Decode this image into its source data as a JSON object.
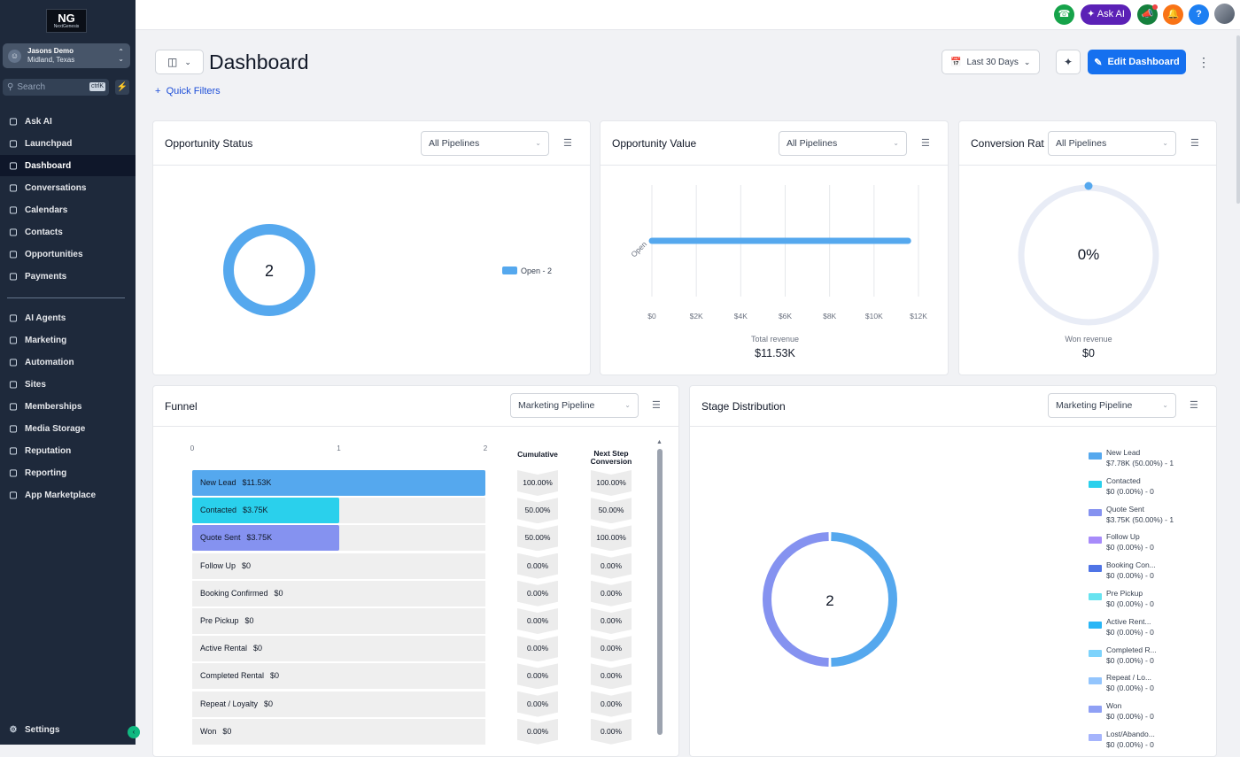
{
  "app": {
    "logo_text": "NextGenesis"
  },
  "account": {
    "name": "Jasons Demo",
    "location": "Midland, Texas"
  },
  "search": {
    "placeholder": "Search",
    "shortcut": "ctrlK"
  },
  "sidebar": {
    "items": [
      {
        "label": "Ask AI",
        "icon": "sparkle-icon"
      },
      {
        "label": "Launchpad",
        "icon": "rocket-icon"
      },
      {
        "label": "Dashboard",
        "icon": "grid-icon"
      },
      {
        "label": "Conversations",
        "icon": "chat-icon"
      },
      {
        "label": "Calendars",
        "icon": "calendar-icon"
      },
      {
        "label": "Contacts",
        "icon": "contacts-icon"
      },
      {
        "label": "Opportunities",
        "icon": "opportunities-icon"
      },
      {
        "label": "Payments",
        "icon": "payments-icon"
      }
    ],
    "items2": [
      {
        "label": "AI Agents",
        "icon": "ai-agents-icon"
      },
      {
        "label": "Marketing",
        "icon": "send-icon"
      },
      {
        "label": "Automation",
        "icon": "automation-icon"
      },
      {
        "label": "Sites",
        "icon": "sites-icon"
      },
      {
        "label": "Memberships",
        "icon": "memberships-icon"
      },
      {
        "label": "Media Storage",
        "icon": "media-icon"
      },
      {
        "label": "Reputation",
        "icon": "star-icon"
      },
      {
        "label": "Reporting",
        "icon": "trend-icon"
      },
      {
        "label": "App Marketplace",
        "icon": "apps-icon"
      }
    ],
    "settings": "Settings"
  },
  "topbar": {
    "ask_ai": "Ask AI"
  },
  "page": {
    "title": "Dashboard",
    "quick_filters": "Quick Filters",
    "date_range": "Last 30 Days",
    "edit_dashboard": "Edit Dashboard"
  },
  "cards": {
    "opportunity_status": {
      "title": "Opportunity Status",
      "filter": "All Pipelines",
      "center_value": "2",
      "legend": "Open - 2"
    },
    "opportunity_value": {
      "title": "Opportunity Value",
      "filter": "All Pipelines",
      "caption": "Total revenue",
      "total": "$11.53K"
    },
    "conversion_rate": {
      "title": "Conversion Rat",
      "filter": "All Pipelines",
      "center_value": "0%",
      "caption": "Won revenue",
      "total": "$0"
    },
    "funnel": {
      "title": "Funnel",
      "filter": "Marketing Pipeline",
      "col_cumulative": "Cumulative",
      "col_next_step": "Next Step",
      "col_conversion": "Conversion"
    },
    "stage_distribution": {
      "title": "Stage Distribution",
      "filter": "Marketing Pipeline",
      "center_value": "2"
    }
  },
  "chart_data": [
    {
      "type": "pie",
      "labels": [
        "Open"
      ],
      "values": [
        2
      ],
      "colors": [
        "#55a8ee"
      ]
    },
    {
      "type": "bar",
      "orientation": "horizontal",
      "categories": [
        "Open"
      ],
      "values": [
        11530
      ],
      "xlim": [
        0,
        12000
      ],
      "x_ticks": [
        "$0",
        "$2K",
        "$4K",
        "$6K",
        "$8K",
        "$10K",
        "$12K"
      ],
      "grid": true,
      "color": "#55a8ee"
    },
    {
      "type": "pie",
      "values": [
        0
      ],
      "center_label": "0%"
    },
    {
      "type": "bar",
      "orientation": "horizontal",
      "x_ticks": [
        "0",
        "1",
        "2"
      ],
      "xlim": [
        0,
        2
      ],
      "stages": [
        {
          "name": "New Lead",
          "amount": "$11.53K",
          "count": 2,
          "cumulative": "100.00%",
          "next_step": "100.00%",
          "color": "#55a8ee"
        },
        {
          "name": "Contacted",
          "amount": "$3.75K",
          "count": 1,
          "cumulative": "50.00%",
          "next_step": "50.00%",
          "color": "#2ad0ec"
        },
        {
          "name": "Quote Sent",
          "amount": "$3.75K",
          "count": 1,
          "cumulative": "50.00%",
          "next_step": "100.00%",
          "color": "#8592f0"
        },
        {
          "name": "Follow Up",
          "amount": "$0",
          "count": 0,
          "cumulative": "0.00%",
          "next_step": "0.00%"
        },
        {
          "name": "Booking Confirmed",
          "amount": "$0",
          "count": 0,
          "cumulative": "0.00%",
          "next_step": "0.00%"
        },
        {
          "name": "Pre Pickup",
          "amount": "$0",
          "count": 0,
          "cumulative": "0.00%",
          "next_step": "0.00%"
        },
        {
          "name": "Active Rental",
          "amount": "$0",
          "count": 0,
          "cumulative": "0.00%",
          "next_step": "0.00%"
        },
        {
          "name": "Completed Rental",
          "amount": "$0",
          "count": 0,
          "cumulative": "0.00%",
          "next_step": "0.00%"
        },
        {
          "name": "Repeat / Loyalty",
          "amount": "$0",
          "count": 0,
          "cumulative": "0.00%",
          "next_step": "0.00%"
        },
        {
          "name": "Won",
          "amount": "$0",
          "count": 0,
          "cumulative": "0.00%",
          "next_step": "0.00%"
        }
      ]
    },
    {
      "type": "pie",
      "center_label": "2",
      "slices": [
        {
          "name": "New Lead",
          "value": 1,
          "color": "#55a8ee"
        },
        {
          "name": "Quote Sent",
          "value": 1,
          "color": "#8592f0"
        }
      ],
      "legend": [
        {
          "name": "New Lead",
          "detail": "$7.78K (50.00%) - 1",
          "color": "#55a8ee"
        },
        {
          "name": "Contacted",
          "detail": "$0 (0.00%) - 0",
          "color": "#2ad0ec"
        },
        {
          "name": "Quote Sent",
          "detail": "$3.75K (50.00%) - 1",
          "color": "#8592f0"
        },
        {
          "name": "Follow Up",
          "detail": "$0 (0.00%) - 0",
          "color": "#a78bfa"
        },
        {
          "name": "Booking Con...",
          "detail": "$0 (0.00%) - 0",
          "color": "#4f74e6"
        },
        {
          "name": "Pre Pickup",
          "detail": "$0 (0.00%) - 0",
          "color": "#67e3f0"
        },
        {
          "name": "Active Rent...",
          "detail": "$0 (0.00%) - 0",
          "color": "#29b6f6"
        },
        {
          "name": "Completed R...",
          "detail": "$0 (0.00%) - 0",
          "color": "#7dd3fc"
        },
        {
          "name": "Repeat / Lo...",
          "detail": "$0 (0.00%) - 0",
          "color": "#93c5fd"
        },
        {
          "name": "Won",
          "detail": "$0 (0.00%) - 0",
          "color": "#8fa0f5"
        },
        {
          "name": "Lost/Abando...",
          "detail": "$0 (0.00%) - 0",
          "color": "#a5b4fc"
        }
      ]
    }
  ]
}
